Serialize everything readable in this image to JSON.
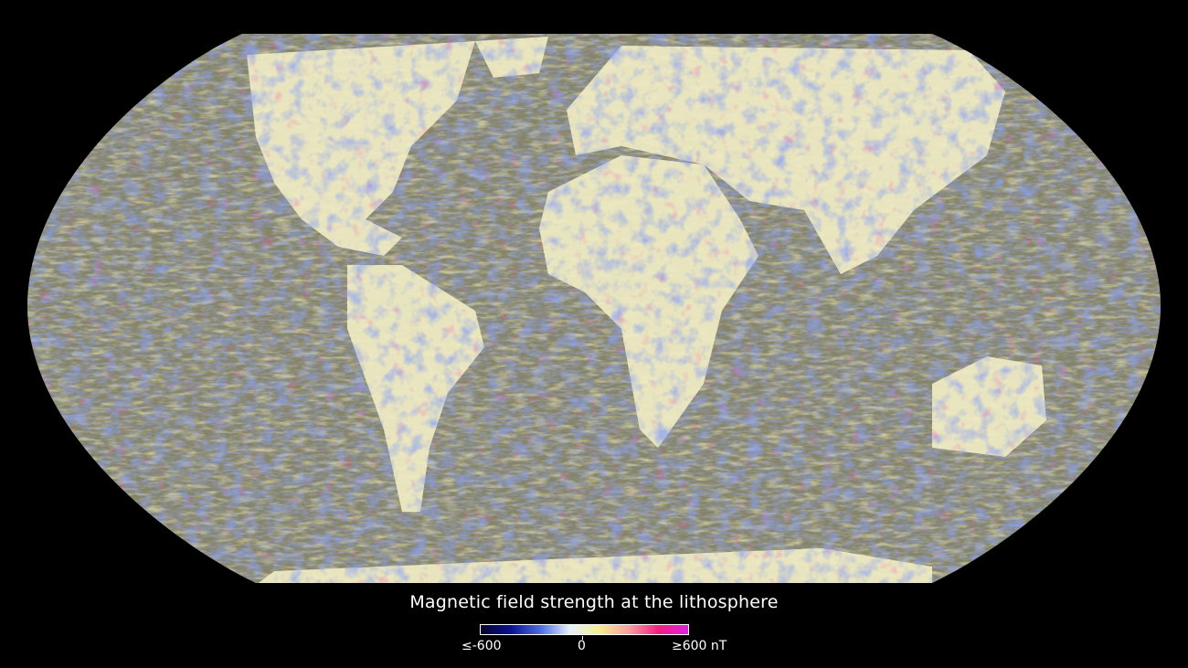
{
  "title": "Magnetic field strength at the lithosphere",
  "colorbar": {
    "min_label": "≤-600",
    "mid_label": "0",
    "max_label": "≥600 nT",
    "stops": [
      "#05052a",
      "#0a1090",
      "#4a6ae0",
      "#e6f0ff",
      "#f4ef90",
      "#f8a0a0",
      "#f02080",
      "#e020e0"
    ]
  },
  "map": {
    "projection": "Robinson",
    "ocean_tone": "#8a8a6a",
    "land_tone": "#f2eec0",
    "positive_color": "#e0206a",
    "negative_color": "#2040c0"
  }
}
